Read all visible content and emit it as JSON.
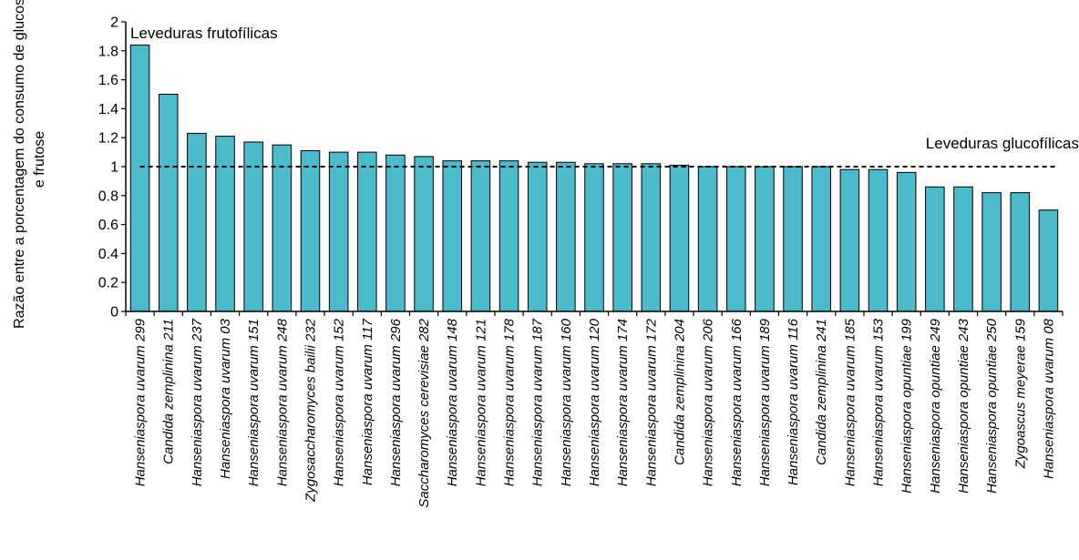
{
  "chart_data": {
    "type": "bar",
    "title": "",
    "xlabel": "",
    "ylabel_line1": "Razão entre a porcentagem do consumo de glucose",
    "ylabel_line2": "e frutose",
    "ylim": [
      0,
      2
    ],
    "yticks": [
      0,
      0.2,
      0.4,
      0.6,
      0.8,
      1,
      1.2,
      1.4,
      1.6,
      1.8,
      2
    ],
    "ytick_labels": [
      "0",
      "0.2",
      "0.4",
      "0.6",
      "0.8",
      "1",
      "1.2",
      "1.4",
      "1.6",
      "1.8",
      "2"
    ],
    "grid": false,
    "bar_color": "#4BBACB",
    "bar_edge_color": "#000000",
    "reference_line": {
      "y": 1,
      "style": "dashed",
      "color": "#000000"
    },
    "annotations": [
      {
        "text": "Leveduras frutofílicas",
        "anchor": "top-left"
      },
      {
        "text": "Leveduras glucofílicas",
        "anchor": "right, above reference line"
      }
    ],
    "categories": [
      "Hanseniaspora uvarum 299",
      "Candida zemplinina 211",
      "Hanseniaspora uvarum 237",
      "Hanseniaspora uvarum 03",
      "Hanseniaspora uvarum 151",
      "Hanseniaspora uvarum 248",
      "Zygosaccharomyces bailii 232",
      "Hanseniaspora uvarum 152",
      "Hanseniaspora uvarum 117",
      "Hanseniaspora uvarum 296",
      "Saccharomyces cerevisiae 282",
      "Hanseniaspora uvarum 148",
      "Hanseniaspora uvarum 121",
      "Hanseniaspora uvarum 178",
      "Hanseniaspora uvarum 187",
      "Hanseniaspora uvarum 160",
      "Hanseniaspora uvarum 120",
      "Hanseniaspora uvarum 174",
      "Hanseniaspora uvarum 172",
      "Candida zemplinina 204",
      "Hanseniaspora uvarum 206",
      "Hanseniaspora uvarum 166",
      "Hanseniaspora uvarum 189",
      "Hanseniaspora uvarum 116",
      "Candida zemplinina 241",
      "Hanseniaspora uvarum 185",
      "Hanseniaspora uvarum 153",
      "Hanseniaspora opuntiae 199",
      "Hanseniaspora opuntiae 249",
      "Hanseniaspora opuntiae 243",
      "Hanseniaspora opuntiae 250",
      "Zygoascus meyerae 159",
      "Hanseniaspora uvarum 08"
    ],
    "values": [
      1.84,
      1.5,
      1.23,
      1.21,
      1.17,
      1.15,
      1.11,
      1.1,
      1.1,
      1.08,
      1.07,
      1.04,
      1.04,
      1.04,
      1.03,
      1.03,
      1.02,
      1.02,
      1.02,
      1.01,
      1.0,
      1.0,
      1.0,
      1.0,
      1.0,
      0.98,
      0.98,
      0.96,
      0.86,
      0.86,
      0.82,
      0.82,
      0.7
    ]
  }
}
